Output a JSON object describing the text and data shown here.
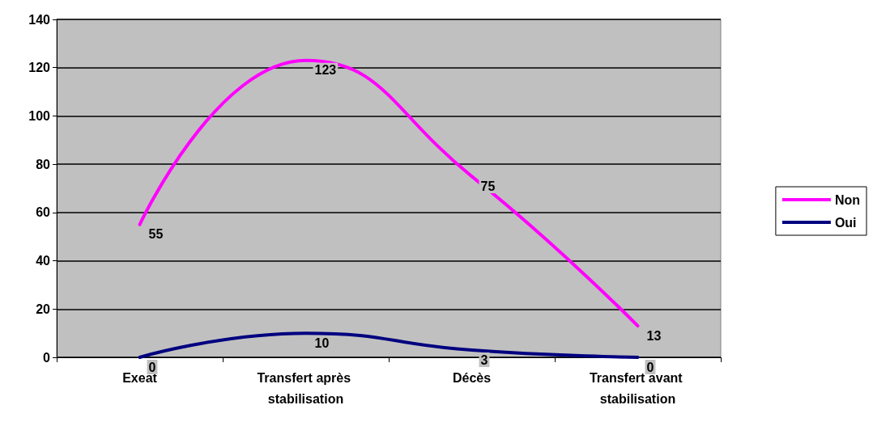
{
  "chart_data": {
    "type": "line",
    "categories": [
      "Exeat",
      "Transfert après stabilisation",
      "Décès",
      "Transfert avant stabilisation"
    ],
    "series": [
      {
        "name": "Non",
        "color": "#ff00ff",
        "values": [
          55,
          123,
          75,
          13
        ]
      },
      {
        "name": "Oui",
        "color": "#000080",
        "values": [
          0,
          10,
          3,
          0
        ]
      }
    ],
    "ylim": [
      0,
      140
    ],
    "yticks": [
      0,
      20,
      40,
      60,
      80,
      100,
      120,
      140
    ],
    "grid": "y",
    "legend": "right",
    "data_labels": true,
    "marker": "none",
    "line_style": "solid"
  }
}
